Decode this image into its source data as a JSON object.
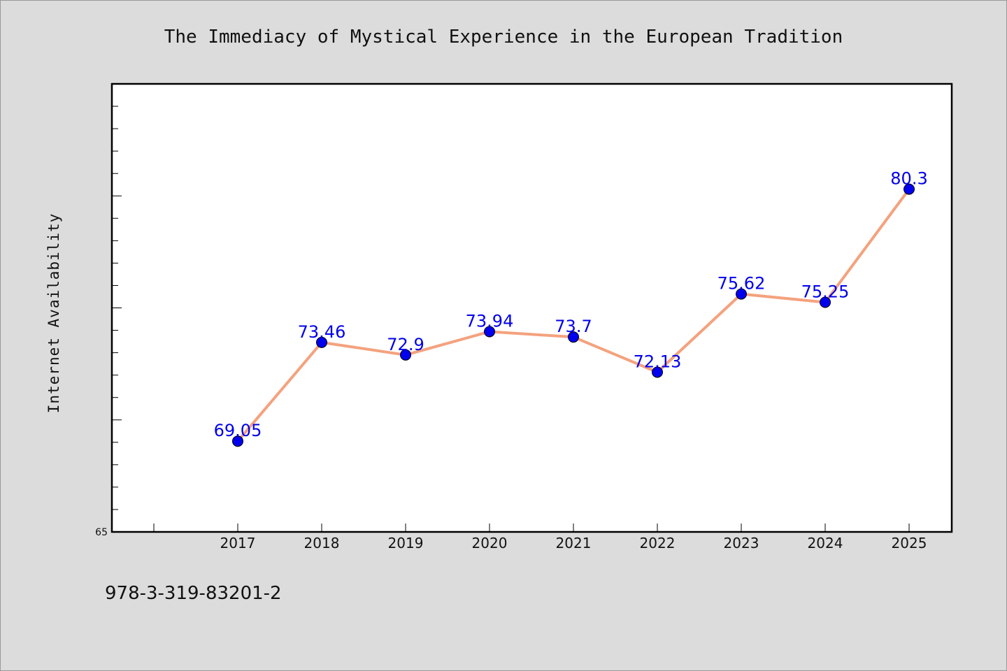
{
  "chart_data": {
    "type": "line",
    "title": "The Immediacy of Mystical Experience in the European Tradition",
    "ylabel": "Internet Availability",
    "xlabel": "",
    "categories": [
      "2017",
      "2018",
      "2019",
      "2020",
      "2021",
      "2022",
      "2023",
      "2024",
      "2025"
    ],
    "series": [
      {
        "values": [
          69.05,
          73.46,
          72.9,
          73.94,
          73.7,
          72.13,
          75.62,
          75.25,
          80.3
        ]
      }
    ],
    "data_labels": [
      "69.05",
      "73.46",
      "72.9",
      "73.94",
      "73.7",
      "72.13",
      "75.62",
      "75.25",
      "80.3"
    ],
    "ylim": [
      65,
      85
    ],
    "ytick_labels": [
      "65"
    ],
    "grid": false,
    "line_color": "#f4a27e",
    "marker_color": "#0000ee",
    "label_color": "#0000ee"
  },
  "footer": {
    "isbn": "978-3-319-83201-2"
  }
}
